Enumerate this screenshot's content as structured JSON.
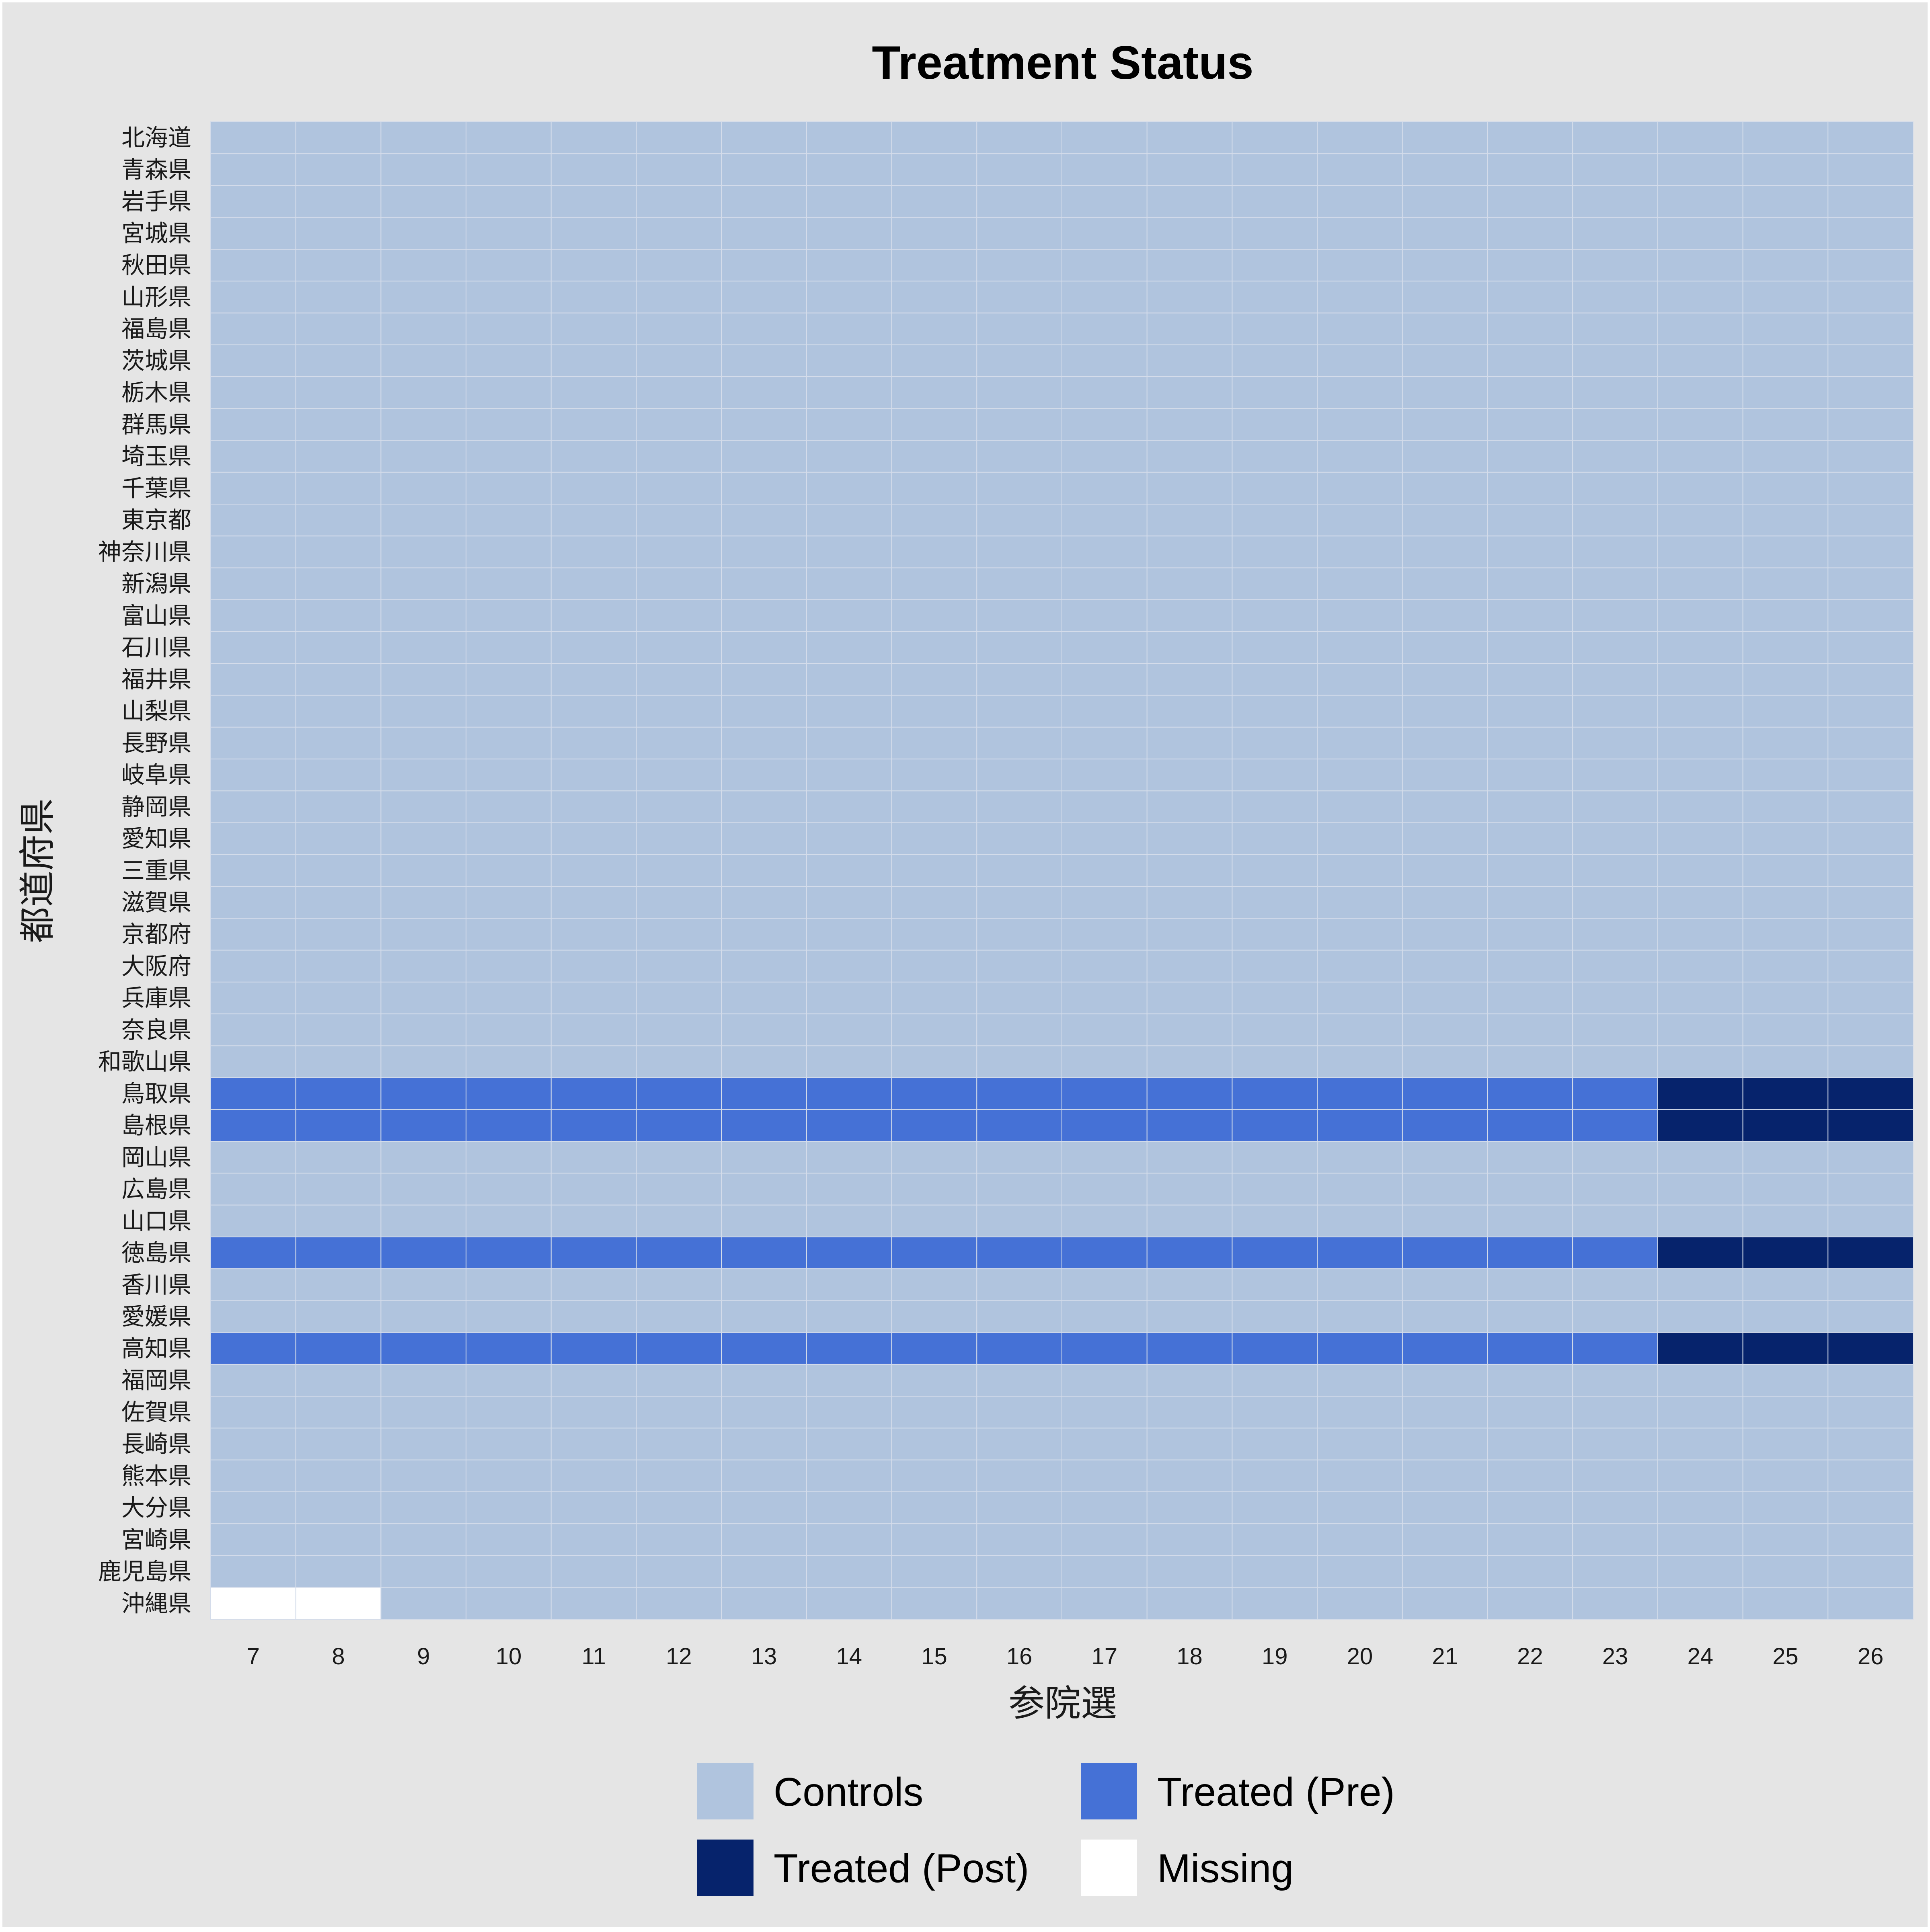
{
  "chart_data": {
    "type": "heatmap",
    "title": "Treatment Status",
    "xlabel": "参院選",
    "ylabel": "都道府県",
    "x": [
      "7",
      "8",
      "9",
      "10",
      "11",
      "12",
      "13",
      "14",
      "15",
      "16",
      "17",
      "18",
      "19",
      "20",
      "21",
      "22",
      "23",
      "24",
      "25",
      "26"
    ],
    "y": [
      "北海道",
      "青森県",
      "岩手県",
      "宮城県",
      "秋田県",
      "山形県",
      "福島県",
      "茨城県",
      "栃木県",
      "群馬県",
      "埼玉県",
      "千葉県",
      "東京都",
      "神奈川県",
      "新潟県",
      "富山県",
      "石川県",
      "福井県",
      "山梨県",
      "長野県",
      "岐阜県",
      "静岡県",
      "愛知県",
      "三重県",
      "滋賀県",
      "京都府",
      "大阪府",
      "兵庫県",
      "奈良県",
      "和歌山県",
      "鳥取県",
      "島根県",
      "岡山県",
      "広島県",
      "山口県",
      "徳島県",
      "香川県",
      "愛媛県",
      "高知県",
      "福岡県",
      "佐賀県",
      "長崎県",
      "熊本県",
      "大分県",
      "宮崎県",
      "鹿児島県",
      "沖縄県"
    ],
    "status_legend": [
      {
        "code": "controls",
        "label": "Controls",
        "color": "#b0c4de"
      },
      {
        "code": "pre",
        "label": "Treated (Pre)",
        "color": "#4571d6"
      },
      {
        "code": "post",
        "label": "Treated (Post)",
        "color": "#06236c"
      },
      {
        "code": "missing",
        "label": "Missing",
        "color": "#ffffff"
      }
    ],
    "default_status": "controls",
    "treated_units": [
      {
        "unit": "鳥取県",
        "treatment_start": "24"
      },
      {
        "unit": "島根県",
        "treatment_start": "24"
      },
      {
        "unit": "徳島県",
        "treatment_start": "24"
      },
      {
        "unit": "高知県",
        "treatment_start": "24"
      }
    ],
    "missing_cells": [
      {
        "unit": "沖縄県",
        "x": "7"
      },
      {
        "unit": "沖縄県",
        "x": "8"
      }
    ],
    "legend_position": "bottom"
  }
}
